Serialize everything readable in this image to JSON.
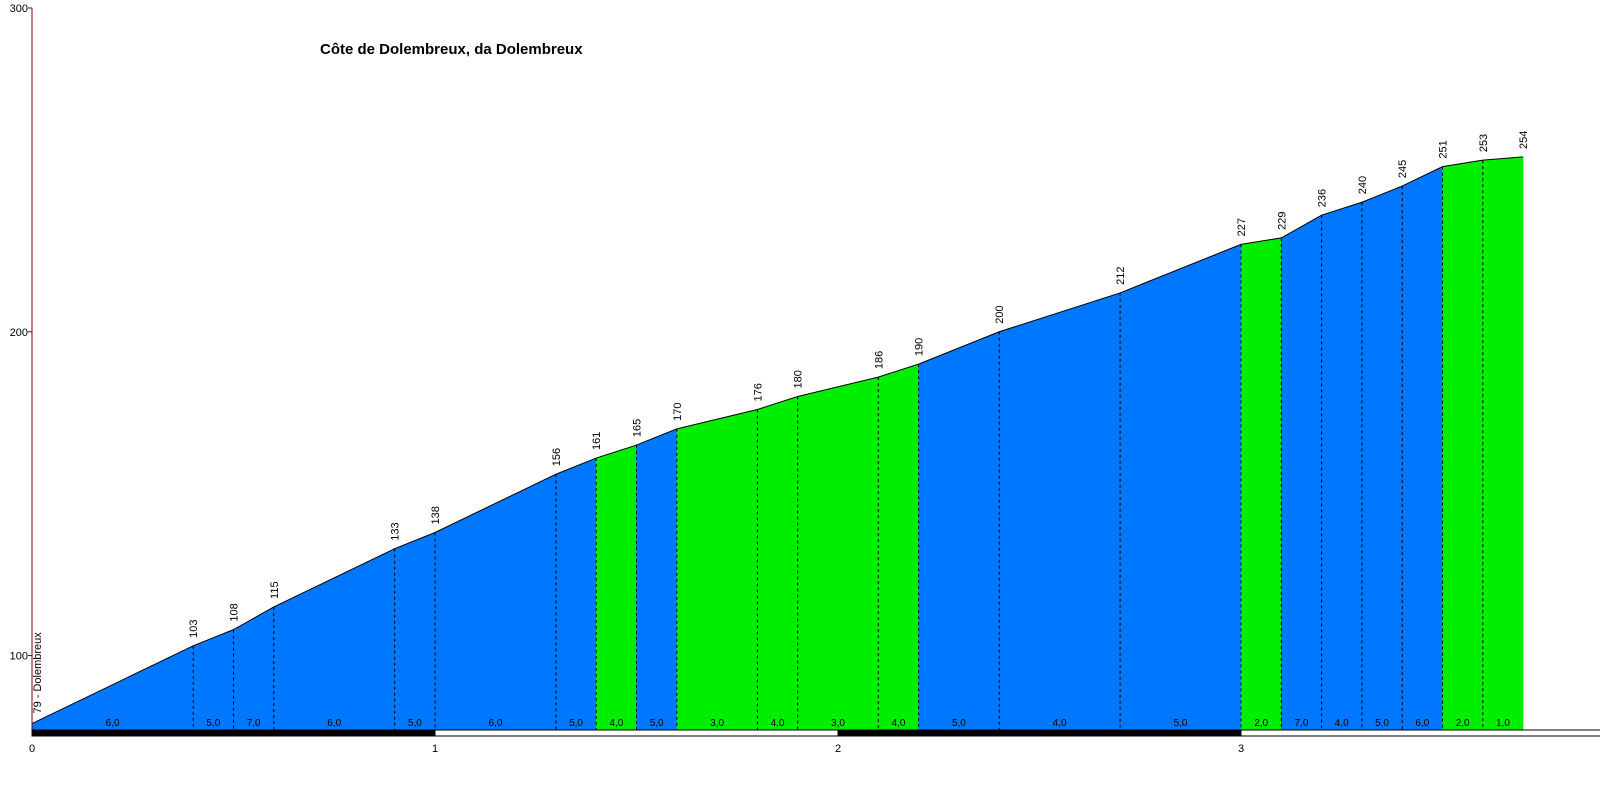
{
  "chart_data": {
    "type": "area",
    "title": "Côte de Dolembreux, da Dolembreux",
    "start_label": "79 - Dolembreux",
    "ylim": [
      77,
      300
    ],
    "yticks": [
      100,
      200,
      300
    ],
    "xlim": [
      0,
      3.9
    ],
    "xticks": [
      0,
      1,
      2,
      3
    ],
    "x": [
      0,
      0.4,
      0.5,
      0.6,
      0.9,
      1.0,
      1.3,
      1.4,
      1.5,
      1.6,
      1.8,
      1.9,
      2.1,
      2.2,
      2.4,
      2.7,
      3.0,
      3.1,
      3.2,
      3.3,
      3.4,
      3.5,
      3.6,
      3.7
    ],
    "elevations": [
      79,
      103,
      108,
      115,
      133,
      138,
      156,
      161,
      165,
      170,
      176,
      180,
      186,
      190,
      200,
      212,
      227,
      229,
      236,
      240,
      245,
      251,
      253,
      254
    ],
    "elevation_labels": [
      "103",
      "108",
      "115",
      "133",
      "138",
      "156",
      "161",
      "165",
      "170",
      "176",
      "180",
      "186",
      "190",
      "200",
      "212",
      "227",
      "229",
      "236",
      "240",
      "245",
      "251",
      "253",
      "254"
    ],
    "gradient_labels": [
      "6,0",
      "5,0",
      "7,0",
      "6,0",
      "5,0",
      "6,0",
      "5,0",
      "4,0",
      "5,0",
      "3,0",
      "4,0",
      "3,0",
      "4,0",
      "5,0",
      "4,0",
      "5,0",
      "2,0",
      "7,0",
      "4,0",
      "5,0",
      "6,0",
      "2,0",
      "1,0"
    ],
    "segment_colors": [
      "blue",
      "blue",
      "blue",
      "blue",
      "blue",
      "blue",
      "blue",
      "green",
      "blue",
      "green",
      "green",
      "green",
      "green",
      "blue",
      "blue",
      "blue",
      "green",
      "blue",
      "blue",
      "blue",
      "blue",
      "green",
      "green"
    ],
    "colors": {
      "blue": "#0077ff",
      "green": "#00ee00",
      "axis": "#800000"
    }
  }
}
